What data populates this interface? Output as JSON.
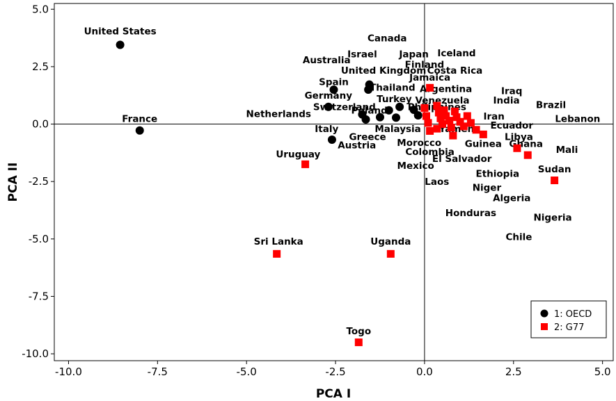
{
  "chart_data": {
    "type": "scatter",
    "xlabel": "PCA I",
    "ylabel": "PCA II",
    "xlim": [
      -10.4,
      5.3
    ],
    "ylim": [
      -10.3,
      5.25
    ],
    "xticks": [
      "-10.0",
      "-7.5",
      "-5.0",
      "-2.5",
      "0.0",
      "2.5",
      "5.0"
    ],
    "yticks": [
      "5.0",
      "2.5",
      "0.0",
      "-2.5",
      "-5.0",
      "-7.5",
      "-10.0"
    ],
    "reference_lines": {
      "x": 0,
      "y": 0
    },
    "legend": {
      "position": "bottom-right"
    },
    "colors": {
      "OECD": "#000000",
      "G77": "#ff0000"
    },
    "series": [
      {
        "name": "1: OECD",
        "marker": "circle",
        "color": "#000000",
        "points": [
          {
            "x": -8.55,
            "y": 3.45
          },
          {
            "x": -8.0,
            "y": -0.28
          },
          {
            "x": -2.55,
            "y": 1.5
          },
          {
            "x": -2.7,
            "y": 0.75
          },
          {
            "x": -2.6,
            "y": -0.68
          },
          {
            "x": -1.75,
            "y": 0.42
          },
          {
            "x": -1.65,
            "y": 0.2
          },
          {
            "x": -1.58,
            "y": 1.5
          },
          {
            "x": -1.55,
            "y": 1.72
          },
          {
            "x": -1.25,
            "y": 0.3
          },
          {
            "x": -1.0,
            "y": 0.6
          },
          {
            "x": -0.8,
            "y": 0.28
          },
          {
            "x": -0.7,
            "y": 0.75
          },
          {
            "x": -0.3,
            "y": 0.62
          },
          {
            "x": -0.18,
            "y": 0.38
          }
        ]
      },
      {
        "name": "2: G77",
        "marker": "square",
        "color": "#ff0000",
        "points": [
          {
            "x": 0.15,
            "y": 1.58
          },
          {
            "x": 0.0,
            "y": 0.7
          },
          {
            "x": 0.05,
            "y": 0.35
          },
          {
            "x": 0.1,
            "y": 0.05
          },
          {
            "x": 0.15,
            "y": -0.3
          },
          {
            "x": 0.35,
            "y": 0.8
          },
          {
            "x": 0.4,
            "y": 0.5
          },
          {
            "x": 0.45,
            "y": 0.25
          },
          {
            "x": 0.5,
            "y": 0.0
          },
          {
            "x": 0.55,
            "y": 0.6
          },
          {
            "x": 0.6,
            "y": 0.35
          },
          {
            "x": 0.7,
            "y": 0.15
          },
          {
            "x": 0.75,
            "y": -0.15
          },
          {
            "x": 0.85,
            "y": 0.55
          },
          {
            "x": 0.9,
            "y": 0.3
          },
          {
            "x": 1.0,
            "y": 0.1
          },
          {
            "x": 1.1,
            "y": -0.1
          },
          {
            "x": 1.2,
            "y": 0.35
          },
          {
            "x": 1.3,
            "y": 0.05
          },
          {
            "x": 1.45,
            "y": -0.25
          },
          {
            "x": 0.35,
            "y": -0.2
          },
          {
            "x": 0.8,
            "y": -0.5
          },
          {
            "x": 1.65,
            "y": -0.45
          },
          {
            "x": 2.6,
            "y": -1.05
          },
          {
            "x": 2.9,
            "y": -1.35
          },
          {
            "x": 3.65,
            "y": -2.45
          },
          {
            "x": -3.35,
            "y": -1.75
          },
          {
            "x": -4.15,
            "y": -5.65
          },
          {
            "x": -0.95,
            "y": -5.65
          },
          {
            "x": -1.85,
            "y": -9.5
          }
        ]
      }
    ],
    "annotations": [
      {
        "text": "United States",
        "x": -8.55,
        "y": 4.05
      },
      {
        "text": "France",
        "x": -8.0,
        "y": 0.25
      },
      {
        "text": "Canada",
        "x": -1.05,
        "y": 3.75
      },
      {
        "text": "Australia",
        "x": -2.75,
        "y": 2.8
      },
      {
        "text": "Israel",
        "x": -1.75,
        "y": 3.05
      },
      {
        "text": "Japan",
        "x": -0.3,
        "y": 3.05
      },
      {
        "text": "Iceland",
        "x": 0.9,
        "y": 3.1
      },
      {
        "text": "Finland",
        "x": 0.0,
        "y": 2.6
      },
      {
        "text": "United Kingdom",
        "x": -1.15,
        "y": 2.35
      },
      {
        "text": "Jamaica",
        "x": 0.15,
        "y": 2.05
      },
      {
        "text": "Costa Rica",
        "x": 0.85,
        "y": 2.35
      },
      {
        "text": "Spain",
        "x": -2.55,
        "y": 1.85
      },
      {
        "text": "Thailand",
        "x": -0.9,
        "y": 1.6
      },
      {
        "text": "Argentina",
        "x": 0.6,
        "y": 1.55
      },
      {
        "text": "Iraq",
        "x": 2.45,
        "y": 1.45
      },
      {
        "text": "Germany",
        "x": -2.7,
        "y": 1.25
      },
      {
        "text": "Turkey",
        "x": -0.85,
        "y": 1.1
      },
      {
        "text": "India",
        "x": 2.3,
        "y": 1.05
      },
      {
        "text": "Brazil",
        "x": 3.55,
        "y": 0.85
      },
      {
        "text": "Switzerland",
        "x": -2.25,
        "y": 0.75
      },
      {
        "text": "Venezuela",
        "x": 0.5,
        "y": 1.05
      },
      {
        "text": "Poland",
        "x": -1.55,
        "y": 0.6
      },
      {
        "text": "Philippines",
        "x": 0.35,
        "y": 0.75
      },
      {
        "text": "Netherlands",
        "x": -4.1,
        "y": 0.45
      },
      {
        "text": "Iran",
        "x": 1.95,
        "y": 0.35
      },
      {
        "text": "Lebanon",
        "x": 4.3,
        "y": 0.25
      },
      {
        "text": "Ecuador",
        "x": 2.45,
        "y": -0.05
      },
      {
        "text": "Malaysia",
        "x": -0.75,
        "y": -0.2
      },
      {
        "text": "Yamen",
        "x": 0.9,
        "y": -0.2
      },
      {
        "text": "Italy",
        "x": -2.75,
        "y": -0.2
      },
      {
        "text": "Greece",
        "x": -1.6,
        "y": -0.55
      },
      {
        "text": "Libya",
        "x": 2.65,
        "y": -0.55
      },
      {
        "text": "Austria",
        "x": -1.9,
        "y": -0.9
      },
      {
        "text": "Morocco",
        "x": -0.15,
        "y": -0.8
      },
      {
        "text": "Guinea",
        "x": 1.65,
        "y": -0.85
      },
      {
        "text": "Ghana",
        "x": 2.85,
        "y": -0.85
      },
      {
        "text": "Uruguay",
        "x": -3.55,
        "y": -1.3
      },
      {
        "text": "Mali",
        "x": 4.0,
        "y": -1.1
      },
      {
        "text": "Colombia",
        "x": 0.15,
        "y": -1.2
      },
      {
        "text": "El Salvador",
        "x": 1.05,
        "y": -1.5
      },
      {
        "text": "Mexico",
        "x": -0.25,
        "y": -1.8
      },
      {
        "text": "Sudan",
        "x": 3.65,
        "y": -1.95
      },
      {
        "text": "Ethiopia",
        "x": 2.05,
        "y": -2.15
      },
      {
        "text": "Laos",
        "x": 0.35,
        "y": -2.5
      },
      {
        "text": "Niger",
        "x": 1.75,
        "y": -2.75
      },
      {
        "text": "Algeria",
        "x": 2.45,
        "y": -3.2
      },
      {
        "text": "Honduras",
        "x": 1.3,
        "y": -3.85
      },
      {
        "text": "Nigeria",
        "x": 3.6,
        "y": -4.05
      },
      {
        "text": "Chile",
        "x": 2.65,
        "y": -4.9
      },
      {
        "text": "Sri Lanka",
        "x": -4.1,
        "y": -5.1
      },
      {
        "text": "Uganda",
        "x": -0.95,
        "y": -5.1
      },
      {
        "text": "Togo",
        "x": -1.85,
        "y": -9.0
      }
    ]
  }
}
